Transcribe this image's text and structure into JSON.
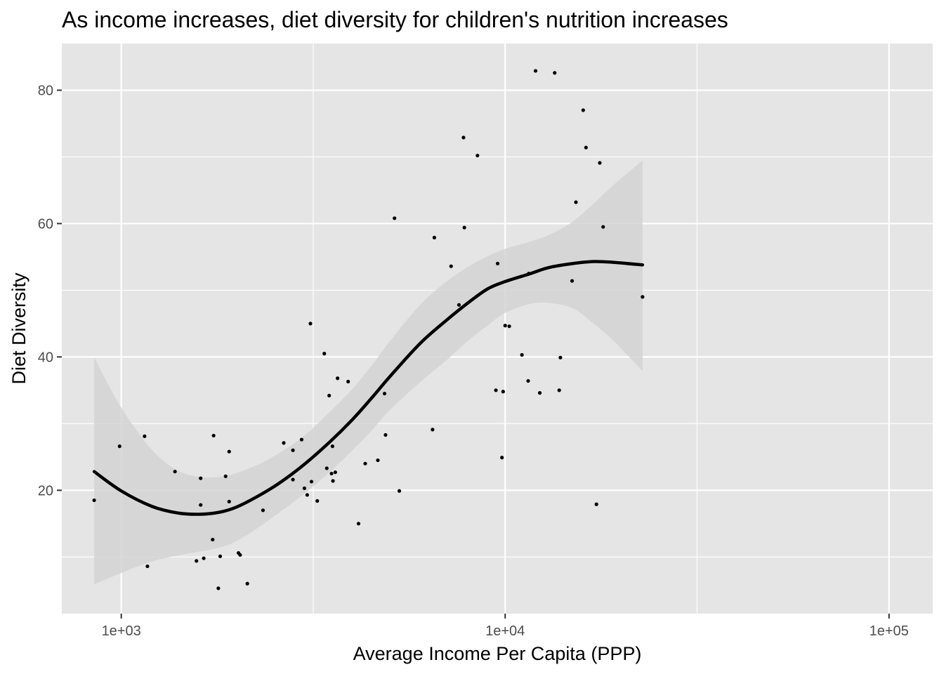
{
  "chart_data": {
    "type": "scatter",
    "title": "As income increases, diet diversity for children's nutrition increases",
    "xlabel": "Average Income Per Capita (PPP)",
    "ylabel": "Diet Diversity",
    "x_scale": "log10",
    "xlim": [
      700,
      130000
    ],
    "ylim": [
      1.5,
      87
    ],
    "x_ticks": [
      1000,
      10000,
      100000
    ],
    "x_tick_labels": [
      "1e+03",
      "1e+04",
      "1e+05"
    ],
    "y_ticks": [
      20,
      40,
      60,
      80
    ],
    "y_tick_labels": [
      "20",
      "40",
      "60",
      "80"
    ],
    "grid": true,
    "legend": "none",
    "colors": {
      "panel": "#e5e5e5",
      "grid": "#ffffff",
      "points": "#000000",
      "line": "#000000",
      "ribbon": "#d4d4d4"
    },
    "points": [
      [
        850,
        18.5
      ],
      [
        990,
        26.6
      ],
      [
        1150,
        28.1
      ],
      [
        1170,
        8.6
      ],
      [
        1380,
        22.8
      ],
      [
        1570,
        9.4
      ],
      [
        1610,
        21.8
      ],
      [
        1610,
        17.8
      ],
      [
        1640,
        9.8
      ],
      [
        1730,
        12.6
      ],
      [
        1740,
        28.2
      ],
      [
        1810,
        10.1
      ],
      [
        1870,
        22.1
      ],
      [
        1910,
        25.8
      ],
      [
        1910,
        18.3
      ],
      [
        1790,
        5.3
      ],
      [
        2020,
        10.6
      ],
      [
        2040,
        10.3
      ],
      [
        2130,
        6.0
      ],
      [
        2340,
        17.0
      ],
      [
        2650,
        27.1
      ],
      [
        2800,
        26.0
      ],
      [
        2800,
        21.6
      ],
      [
        2950,
        27.6
      ],
      [
        3000,
        20.3
      ],
      [
        3050,
        19.3
      ],
      [
        3110,
        45.0
      ],
      [
        3130,
        21.3
      ],
      [
        3240,
        18.4
      ],
      [
        3380,
        40.5
      ],
      [
        3430,
        23.3
      ],
      [
        3480,
        34.2
      ],
      [
        3530,
        22.5
      ],
      [
        3550,
        26.6
      ],
      [
        3560,
        21.4
      ],
      [
        3610,
        22.7
      ],
      [
        3660,
        36.8
      ],
      [
        3900,
        36.3
      ],
      [
        4150,
        15.0
      ],
      [
        4320,
        24.0
      ],
      [
        4660,
        24.5
      ],
      [
        4850,
        34.5
      ],
      [
        4880,
        28.3
      ],
      [
        5150,
        60.8
      ],
      [
        5300,
        19.9
      ],
      [
        6470,
        29.1
      ],
      [
        6540,
        57.9
      ],
      [
        7230,
        53.6
      ],
      [
        7580,
        47.8
      ],
      [
        7790,
        72.9
      ],
      [
        7830,
        59.4
      ],
      [
        8470,
        70.2
      ],
      [
        9460,
        35.0
      ],
      [
        9560,
        54.0
      ],
      [
        9810,
        24.9
      ],
      [
        9880,
        34.8
      ],
      [
        10000,
        44.7
      ],
      [
        10250,
        44.6
      ],
      [
        11060,
        40.3
      ],
      [
        11480,
        36.4
      ],
      [
        11520,
        52.5
      ],
      [
        12000,
        82.9
      ],
      [
        12310,
        34.6
      ],
      [
        13460,
        82.6
      ],
      [
        13830,
        35.0
      ],
      [
        13930,
        39.9
      ],
      [
        14940,
        51.4
      ],
      [
        15290,
        63.2
      ],
      [
        15970,
        77.0
      ],
      [
        16240,
        71.4
      ],
      [
        17290,
        17.9
      ],
      [
        17640,
        69.1
      ],
      [
        18000,
        59.5
      ],
      [
        22800,
        49.0
      ]
    ],
    "smooth_fit": {
      "method": "loess",
      "x": [
        850,
        1000,
        1200,
        1400,
        1600,
        1800,
        2000,
        2300,
        2600,
        3000,
        3500,
        4000,
        4500,
        5000,
        6000,
        7000,
        8000,
        9000,
        10000,
        11500,
        13000,
        15000,
        17000,
        19000,
        22800
      ],
      "y": [
        22.8,
        19.9,
        17.6,
        16.6,
        16.4,
        16.7,
        17.5,
        19.3,
        21.2,
        23.9,
        27.3,
        30.6,
        33.9,
        37.0,
        42.0,
        45.4,
        48.1,
        50.2,
        51.3,
        52.4,
        53.4,
        54.0,
        54.3,
        54.2,
        53.8
      ],
      "ymin": [
        5.9,
        7.6,
        9.3,
        10.2,
        10.8,
        11.4,
        12.4,
        14.6,
        16.8,
        19.5,
        22.8,
        26.0,
        29.0,
        32.0,
        36.2,
        39.4,
        42.4,
        44.7,
        46.6,
        47.9,
        48.1,
        47.3,
        45.0,
        42.6,
        37.9
      ],
      "ymax": [
        39.9,
        32.4,
        26.1,
        23.0,
        22.0,
        22.0,
        22.6,
        24.0,
        25.7,
        28.2,
        31.8,
        35.2,
        38.8,
        42.3,
        47.8,
        51.2,
        53.5,
        55.1,
        56.2,
        57.2,
        58.3,
        60.3,
        63.0,
        65.6,
        69.5
      ]
    }
  }
}
